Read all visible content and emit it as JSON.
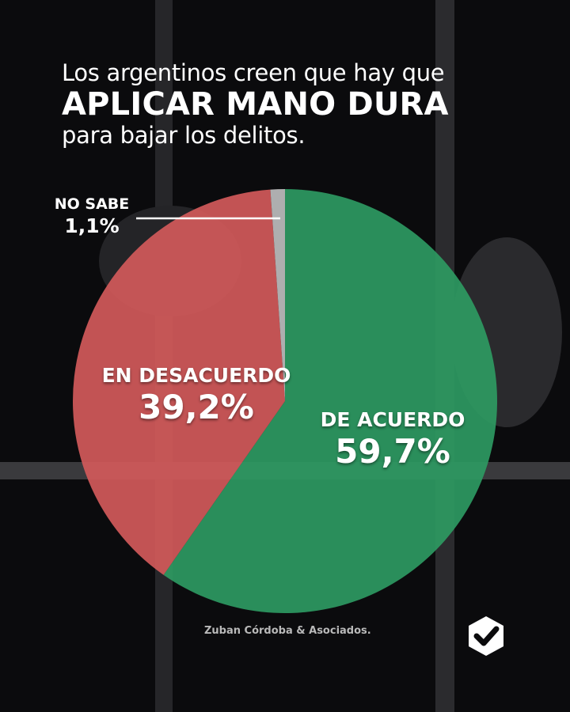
{
  "title": {
    "line1": "Los argentinos creen que hay que",
    "line2": "APLICAR MANO DURA",
    "line3": "para bajar los delitos."
  },
  "chart_data": {
    "type": "pie",
    "slices": [
      {
        "label": "DE ACUERDO",
        "value": 59.7,
        "display": "59,7%",
        "color": "#2e9a62"
      },
      {
        "label": "EN DESACUERDO",
        "value": 39.2,
        "display": "39,2%",
        "color": "#d35a5a"
      },
      {
        "label": "NO SABE",
        "value": 1.1,
        "display": "1,1%",
        "color": "#bdbdbd"
      }
    ],
    "start": "12 o'clock",
    "direction": "clockwise"
  },
  "source": "Zuban Córdoba & Asociados.",
  "logo_icon": "checkmark-hexagon-icon"
}
